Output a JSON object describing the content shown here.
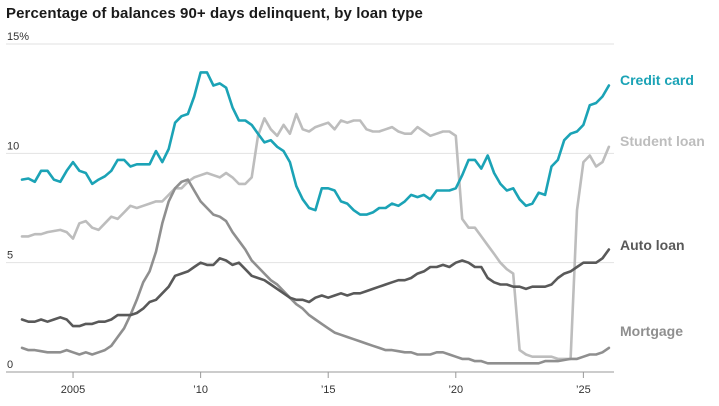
{
  "title": "Percentage of balances 90+ days delinquent, by loan type",
  "colors": {
    "credit_card": "#1ba3b6",
    "student_loan": "#bdbdbd",
    "auto_loan": "#595959",
    "mortgage": "#8f8f8f",
    "gridline": "#e2e2e2",
    "axis": "#999999"
  },
  "chart_data": {
    "type": "line",
    "title": "Percentage of balances 90+ days delinquent, by loan type",
    "xlabel": "",
    "ylabel": "",
    "xlim": [
      2003.0,
      2026.2
    ],
    "ylim": [
      0,
      15
    ],
    "grid": "horizontal",
    "legend": "right-side direct labels",
    "y_ticks": [
      {
        "value": 0,
        "label": "0"
      },
      {
        "value": 5,
        "label": "5"
      },
      {
        "value": 10,
        "label": "10"
      },
      {
        "value": 15,
        "label": "15%"
      }
    ],
    "x_ticks": [
      {
        "value": 2005,
        "label": "2005"
      },
      {
        "value": 2010,
        "label": "’10"
      },
      {
        "value": 2015,
        "label": "’15"
      },
      {
        "value": 2020,
        "label": "’20"
      },
      {
        "value": 2025,
        "label": "’25"
      }
    ],
    "series": [
      {
        "name": "Credit card",
        "key": "credit_card",
        "x": [
          2003.0,
          2003.25,
          2003.5,
          2003.75,
          2004.0,
          2004.25,
          2004.5,
          2004.75,
          2005.0,
          2005.25,
          2005.5,
          2005.75,
          2006.0,
          2006.25,
          2006.5,
          2006.75,
          2007.0,
          2007.25,
          2007.5,
          2007.75,
          2008.0,
          2008.25,
          2008.5,
          2008.75,
          2009.0,
          2009.25,
          2009.5,
          2009.75,
          2010.0,
          2010.25,
          2010.5,
          2010.75,
          2011.0,
          2011.25,
          2011.5,
          2011.75,
          2012.0,
          2012.25,
          2012.5,
          2012.75,
          2013.0,
          2013.25,
          2013.5,
          2013.75,
          2014.0,
          2014.25,
          2014.5,
          2014.75,
          2015.0,
          2015.25,
          2015.5,
          2015.75,
          2016.0,
          2016.25,
          2016.5,
          2016.75,
          2017.0,
          2017.25,
          2017.5,
          2017.75,
          2018.0,
          2018.25,
          2018.5,
          2018.75,
          2019.0,
          2019.25,
          2019.5,
          2019.75,
          2020.0,
          2020.25,
          2020.5,
          2020.75,
          2021.0,
          2021.25,
          2021.5,
          2021.75,
          2022.0,
          2022.25,
          2022.5,
          2022.75,
          2023.0,
          2023.25,
          2023.5,
          2023.75,
          2024.0,
          2024.25,
          2024.5,
          2024.75,
          2025.0,
          2025.25,
          2025.5,
          2025.75,
          2026.0
        ],
        "y": [
          8.8,
          8.85,
          8.7,
          9.2,
          9.2,
          8.8,
          8.7,
          9.2,
          9.6,
          9.2,
          9.1,
          8.6,
          8.8,
          8.95,
          9.2,
          9.7,
          9.7,
          9.4,
          9.5,
          9.5,
          9.5,
          10.1,
          9.6,
          10.2,
          11.4,
          11.7,
          11.8,
          12.6,
          13.7,
          13.7,
          13.1,
          13.2,
          13.0,
          12.1,
          11.5,
          11.5,
          11.3,
          10.9,
          10.5,
          10.6,
          10.3,
          10.1,
          9.6,
          8.5,
          7.9,
          7.5,
          7.4,
          8.4,
          8.4,
          8.3,
          7.8,
          7.7,
          7.4,
          7.2,
          7.2,
          7.3,
          7.5,
          7.5,
          7.7,
          7.6,
          7.8,
          8.1,
          8.0,
          8.1,
          7.9,
          8.3,
          8.3,
          8.3,
          8.4,
          9.0,
          9.7,
          9.7,
          9.3,
          9.9,
          9.1,
          8.6,
          8.3,
          8.4,
          7.9,
          7.6,
          7.7,
          8.2,
          8.1,
          9.4,
          9.7,
          10.6,
          10.9,
          11.0,
          11.3,
          12.2,
          12.3,
          12.6,
          13.1
        ]
      },
      {
        "name": "Student loan",
        "key": "student_loan",
        "x": [
          2003.0,
          2003.25,
          2003.5,
          2003.75,
          2004.0,
          2004.25,
          2004.5,
          2004.75,
          2005.0,
          2005.25,
          2005.5,
          2005.75,
          2006.0,
          2006.25,
          2006.5,
          2006.75,
          2007.0,
          2007.25,
          2007.5,
          2007.75,
          2008.0,
          2008.25,
          2008.5,
          2008.75,
          2009.0,
          2009.25,
          2009.5,
          2009.75,
          2010.0,
          2010.25,
          2010.5,
          2010.75,
          2011.0,
          2011.25,
          2011.5,
          2011.75,
          2012.0,
          2012.25,
          2012.5,
          2012.75,
          2013.0,
          2013.25,
          2013.5,
          2013.75,
          2014.0,
          2014.25,
          2014.5,
          2014.75,
          2015.0,
          2015.25,
          2015.5,
          2015.75,
          2016.0,
          2016.25,
          2016.5,
          2016.75,
          2017.0,
          2017.25,
          2017.5,
          2017.75,
          2018.0,
          2018.25,
          2018.5,
          2018.75,
          2019.0,
          2019.25,
          2019.5,
          2019.75,
          2020.0,
          2020.25,
          2020.5,
          2020.75,
          2021.0,
          2021.25,
          2021.5,
          2021.75,
          2022.0,
          2022.25,
          2022.5,
          2022.75,
          2023.0,
          2023.25,
          2023.5,
          2023.75,
          2024.0,
          2024.25,
          2024.5,
          2024.75,
          2025.0,
          2025.25,
          2025.5,
          2025.75,
          2026.0
        ],
        "y": [
          6.2,
          6.2,
          6.3,
          6.3,
          6.4,
          6.45,
          6.5,
          6.4,
          6.1,
          6.8,
          6.9,
          6.6,
          6.5,
          6.8,
          7.1,
          7.0,
          7.3,
          7.6,
          7.5,
          7.6,
          7.7,
          7.8,
          7.8,
          8.1,
          8.4,
          8.4,
          8.7,
          8.9,
          9.0,
          9.1,
          9.0,
          8.9,
          9.1,
          8.9,
          8.6,
          8.6,
          8.9,
          10.8,
          11.6,
          11.1,
          10.8,
          11.3,
          10.9,
          11.8,
          11.1,
          11.0,
          11.2,
          11.3,
          11.4,
          11.1,
          11.5,
          11.4,
          11.5,
          11.5,
          11.1,
          11.0,
          11.0,
          11.1,
          11.2,
          11.0,
          10.9,
          10.9,
          11.2,
          11.0,
          10.8,
          10.9,
          11.0,
          11.0,
          10.8,
          7.0,
          6.6,
          6.6,
          6.2,
          5.8,
          5.4,
          5.0,
          4.7,
          4.5,
          1.0,
          0.8,
          0.7,
          0.7,
          0.7,
          0.7,
          0.6,
          0.6,
          0.6,
          7.4,
          9.6,
          9.9,
          9.4,
          9.6,
          10.3
        ]
      },
      {
        "name": "Auto loan",
        "key": "auto_loan",
        "x": [
          2003.0,
          2003.25,
          2003.5,
          2003.75,
          2004.0,
          2004.25,
          2004.5,
          2004.75,
          2005.0,
          2005.25,
          2005.5,
          2005.75,
          2006.0,
          2006.25,
          2006.5,
          2006.75,
          2007.0,
          2007.25,
          2007.5,
          2007.75,
          2008.0,
          2008.25,
          2008.5,
          2008.75,
          2009.0,
          2009.25,
          2009.5,
          2009.75,
          2010.0,
          2010.25,
          2010.5,
          2010.75,
          2011.0,
          2011.25,
          2011.5,
          2011.75,
          2012.0,
          2012.25,
          2012.5,
          2012.75,
          2013.0,
          2013.25,
          2013.5,
          2013.75,
          2014.0,
          2014.25,
          2014.5,
          2014.75,
          2015.0,
          2015.25,
          2015.5,
          2015.75,
          2016.0,
          2016.25,
          2016.5,
          2016.75,
          2017.0,
          2017.25,
          2017.5,
          2017.75,
          2018.0,
          2018.25,
          2018.5,
          2018.75,
          2019.0,
          2019.25,
          2019.5,
          2019.75,
          2020.0,
          2020.25,
          2020.5,
          2020.75,
          2021.0,
          2021.25,
          2021.5,
          2021.75,
          2022.0,
          2022.25,
          2022.5,
          2022.75,
          2023.0,
          2023.25,
          2023.5,
          2023.75,
          2024.0,
          2024.25,
          2024.5,
          2024.75,
          2025.0,
          2025.25,
          2025.5,
          2025.75,
          2026.0
        ],
        "y": [
          2.4,
          2.3,
          2.3,
          2.4,
          2.3,
          2.4,
          2.5,
          2.4,
          2.1,
          2.1,
          2.2,
          2.2,
          2.3,
          2.3,
          2.4,
          2.6,
          2.6,
          2.6,
          2.7,
          2.9,
          3.2,
          3.3,
          3.6,
          3.9,
          4.4,
          4.5,
          4.6,
          4.8,
          5.0,
          4.9,
          4.9,
          5.2,
          5.1,
          4.9,
          5.0,
          4.7,
          4.4,
          4.3,
          4.2,
          4.0,
          3.8,
          3.6,
          3.4,
          3.3,
          3.3,
          3.2,
          3.4,
          3.5,
          3.4,
          3.5,
          3.6,
          3.5,
          3.6,
          3.6,
          3.7,
          3.8,
          3.9,
          4.0,
          4.1,
          4.2,
          4.2,
          4.3,
          4.5,
          4.6,
          4.8,
          4.8,
          4.9,
          4.8,
          5.0,
          5.1,
          5.0,
          4.8,
          4.8,
          4.3,
          4.1,
          4.0,
          4.0,
          3.9,
          3.9,
          3.8,
          3.9,
          3.9,
          3.9,
          4.0,
          4.3,
          4.5,
          4.6,
          4.8,
          5.0,
          5.0,
          5.0,
          5.2,
          5.6
        ]
      },
      {
        "name": "Mortgage",
        "key": "mortgage",
        "x": [
          2003.0,
          2003.25,
          2003.5,
          2003.75,
          2004.0,
          2004.25,
          2004.5,
          2004.75,
          2005.0,
          2005.25,
          2005.5,
          2005.75,
          2006.0,
          2006.25,
          2006.5,
          2006.75,
          2007.0,
          2007.25,
          2007.5,
          2007.75,
          2008.0,
          2008.25,
          2008.5,
          2008.75,
          2009.0,
          2009.25,
          2009.5,
          2009.75,
          2010.0,
          2010.25,
          2010.5,
          2010.75,
          2011.0,
          2011.25,
          2011.5,
          2011.75,
          2012.0,
          2012.25,
          2012.5,
          2012.75,
          2013.0,
          2013.25,
          2013.5,
          2013.75,
          2014.0,
          2014.25,
          2014.5,
          2014.75,
          2015.0,
          2015.25,
          2015.5,
          2015.75,
          2016.0,
          2016.25,
          2016.5,
          2016.75,
          2017.0,
          2017.25,
          2017.5,
          2017.75,
          2018.0,
          2018.25,
          2018.5,
          2018.75,
          2019.0,
          2019.25,
          2019.5,
          2019.75,
          2020.0,
          2020.25,
          2020.5,
          2020.75,
          2021.0,
          2021.25,
          2021.5,
          2021.75,
          2022.0,
          2022.25,
          2022.5,
          2022.75,
          2023.0,
          2023.25,
          2023.5,
          2023.75,
          2024.0,
          2024.25,
          2024.5,
          2024.75,
          2025.0,
          2025.25,
          2025.5,
          2025.75,
          2026.0
        ],
        "y": [
          1.1,
          1.0,
          1.0,
          0.95,
          0.9,
          0.9,
          0.9,
          1.0,
          0.9,
          0.8,
          0.9,
          0.8,
          0.9,
          1.0,
          1.2,
          1.6,
          2.0,
          2.6,
          3.3,
          4.1,
          4.6,
          5.5,
          6.8,
          7.8,
          8.4,
          8.7,
          8.8,
          8.3,
          7.8,
          7.5,
          7.2,
          7.1,
          6.9,
          6.4,
          6.0,
          5.6,
          5.1,
          4.8,
          4.5,
          4.2,
          4.0,
          3.7,
          3.4,
          3.1,
          2.9,
          2.6,
          2.4,
          2.2,
          2.0,
          1.8,
          1.7,
          1.6,
          1.5,
          1.4,
          1.3,
          1.2,
          1.1,
          1.0,
          1.0,
          0.95,
          0.9,
          0.9,
          0.8,
          0.8,
          0.8,
          0.9,
          0.9,
          0.8,
          0.7,
          0.6,
          0.6,
          0.5,
          0.5,
          0.4,
          0.4,
          0.4,
          0.4,
          0.4,
          0.4,
          0.4,
          0.4,
          0.4,
          0.5,
          0.5,
          0.5,
          0.55,
          0.6,
          0.6,
          0.7,
          0.8,
          0.8,
          0.9,
          1.1
        ]
      }
    ]
  }
}
